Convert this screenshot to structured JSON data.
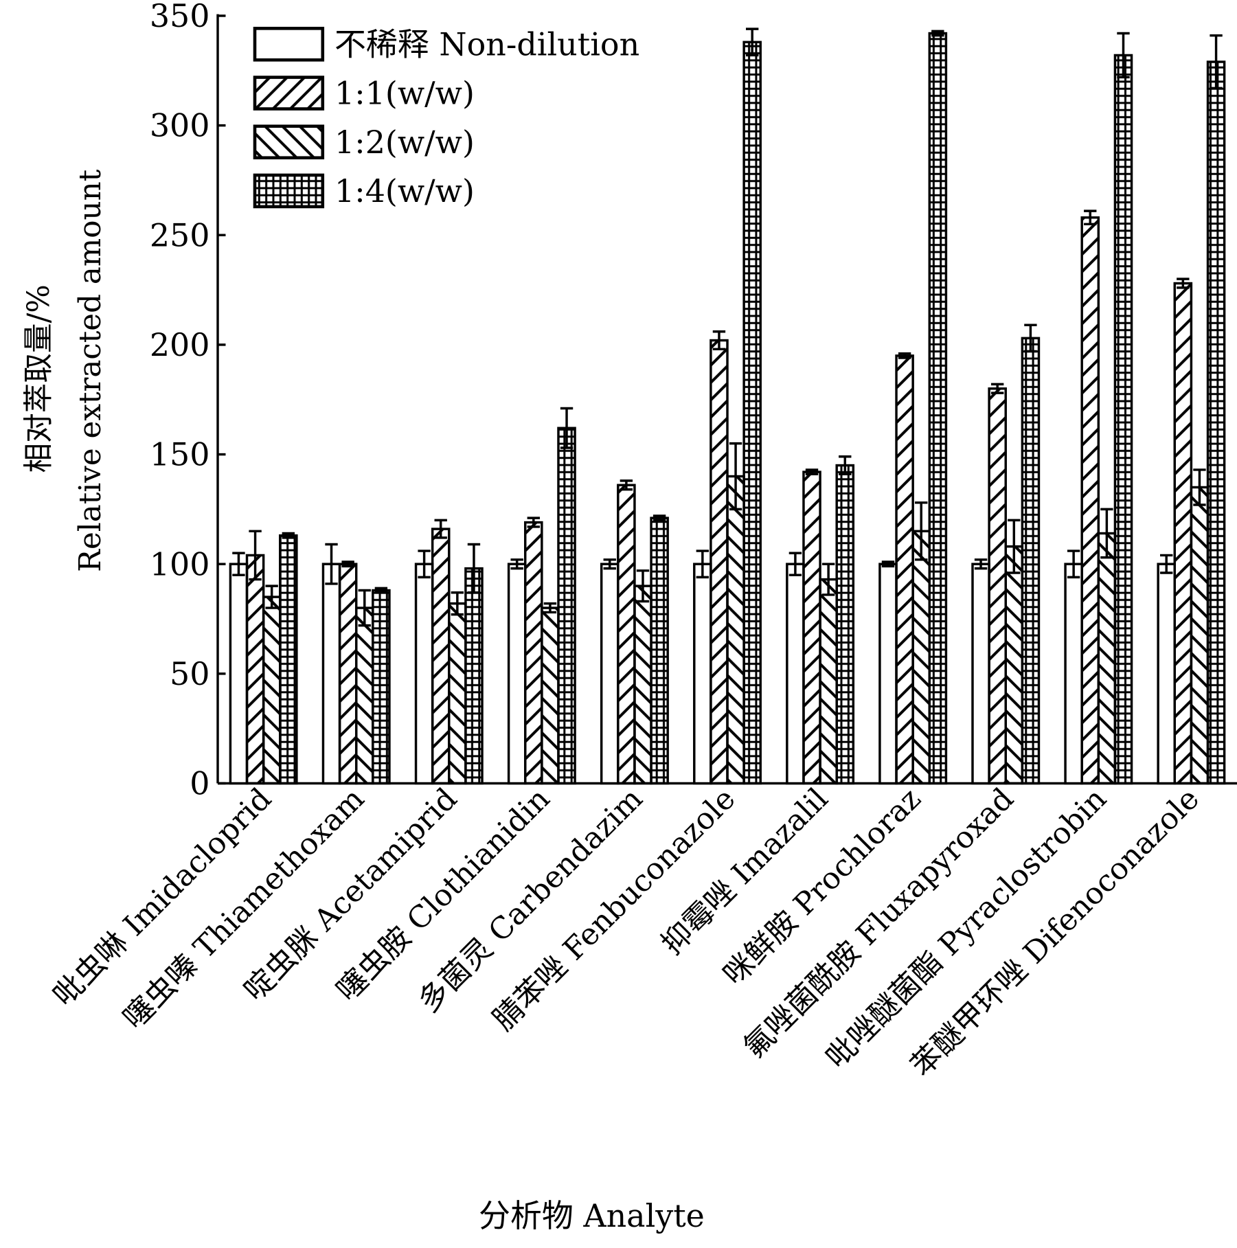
{
  "chart_data": {
    "type": "bar",
    "title": "",
    "xlabel": "分析物 Analyte",
    "ylabel_cn": "相对萃取量/%",
    "ylabel_en": "Relative extracted amount",
    "ylim": [
      0,
      350
    ],
    "yticks": [
      "0",
      "50",
      "100",
      "150",
      "200",
      "250",
      "300",
      "350"
    ],
    "legend_position": "top-left",
    "categories": [
      "吡虫啉 Imidacloprid",
      "噻虫嗪 Thiamethoxam",
      "啶虫脒 Acetamiprid",
      "噻虫胺 Clothianidin",
      "多菌灵 Carbendazim",
      "腈苯唑 Fenbuconazole",
      "抑霉唑 Imazalil",
      "咪鲜胺 Prochloraz",
      "氟唑菌酰胺 Fluxapyroxad",
      "吡唑醚菌酯 Pyraclostrobin",
      "苯醚甲环唑 Difenoconazole"
    ],
    "series": [
      {
        "name": "不稀释 Non-dilution",
        "pattern": "none",
        "values": [
          100,
          100,
          100,
          100,
          100,
          100,
          100,
          100,
          100,
          100,
          100
        ],
        "errors": [
          5,
          9,
          6,
          2,
          2,
          6,
          5,
          1,
          2,
          6,
          4
        ]
      },
      {
        "name": "1:1(w/w)",
        "pattern": "hatch-forward",
        "values": [
          104,
          100,
          116,
          119,
          136,
          202,
          142,
          195,
          180,
          258,
          228
        ],
        "errors": [
          11,
          1,
          4,
          2,
          2,
          4,
          1,
          1,
          2,
          3,
          2
        ]
      },
      {
        "name": "1:2(w/w)",
        "pattern": "hatch-back",
        "values": [
          85,
          80,
          82,
          80,
          90,
          140,
          93,
          115,
          108,
          114,
          135
        ],
        "errors": [
          5,
          8,
          5,
          2,
          7,
          15,
          7,
          13,
          12,
          11,
          8
        ]
      },
      {
        "name": "1:4(w/w)",
        "pattern": "grid",
        "values": [
          113,
          88,
          98,
          162,
          121,
          338,
          145,
          342,
          203,
          332,
          329
        ],
        "errors": [
          1,
          1,
          11,
          9,
          1,
          6,
          4,
          1,
          6,
          10,
          12
        ]
      }
    ]
  }
}
